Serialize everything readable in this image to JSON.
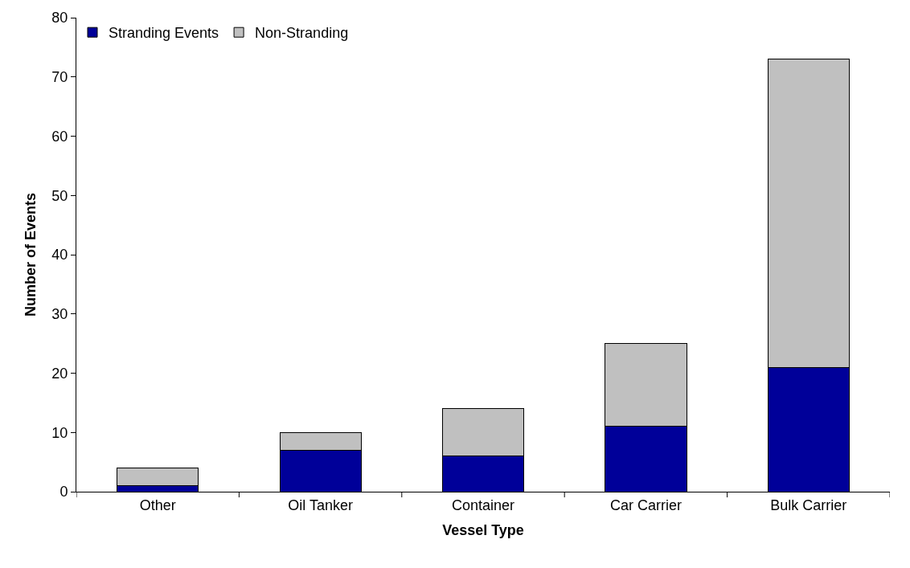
{
  "chart_data": {
    "type": "bar",
    "stacked": true,
    "xlabel": "Vessel Type",
    "ylabel": "Number of Events",
    "categories": [
      "Other",
      "Oil Tanker",
      "Container",
      "Car Carrier",
      "Bulk Carrier"
    ],
    "series": [
      {
        "name": "Stranding Events",
        "color": "#000099",
        "values": [
          1,
          7,
          6,
          11,
          21
        ]
      },
      {
        "name": "Non-Stranding",
        "color": "#c0c0c0",
        "values": [
          3,
          3,
          8,
          14,
          52
        ]
      }
    ],
    "ylim": [
      0,
      80
    ],
    "yticks": [
      0,
      10,
      20,
      30,
      40,
      50,
      60,
      70,
      80
    ],
    "legend": "top left"
  }
}
